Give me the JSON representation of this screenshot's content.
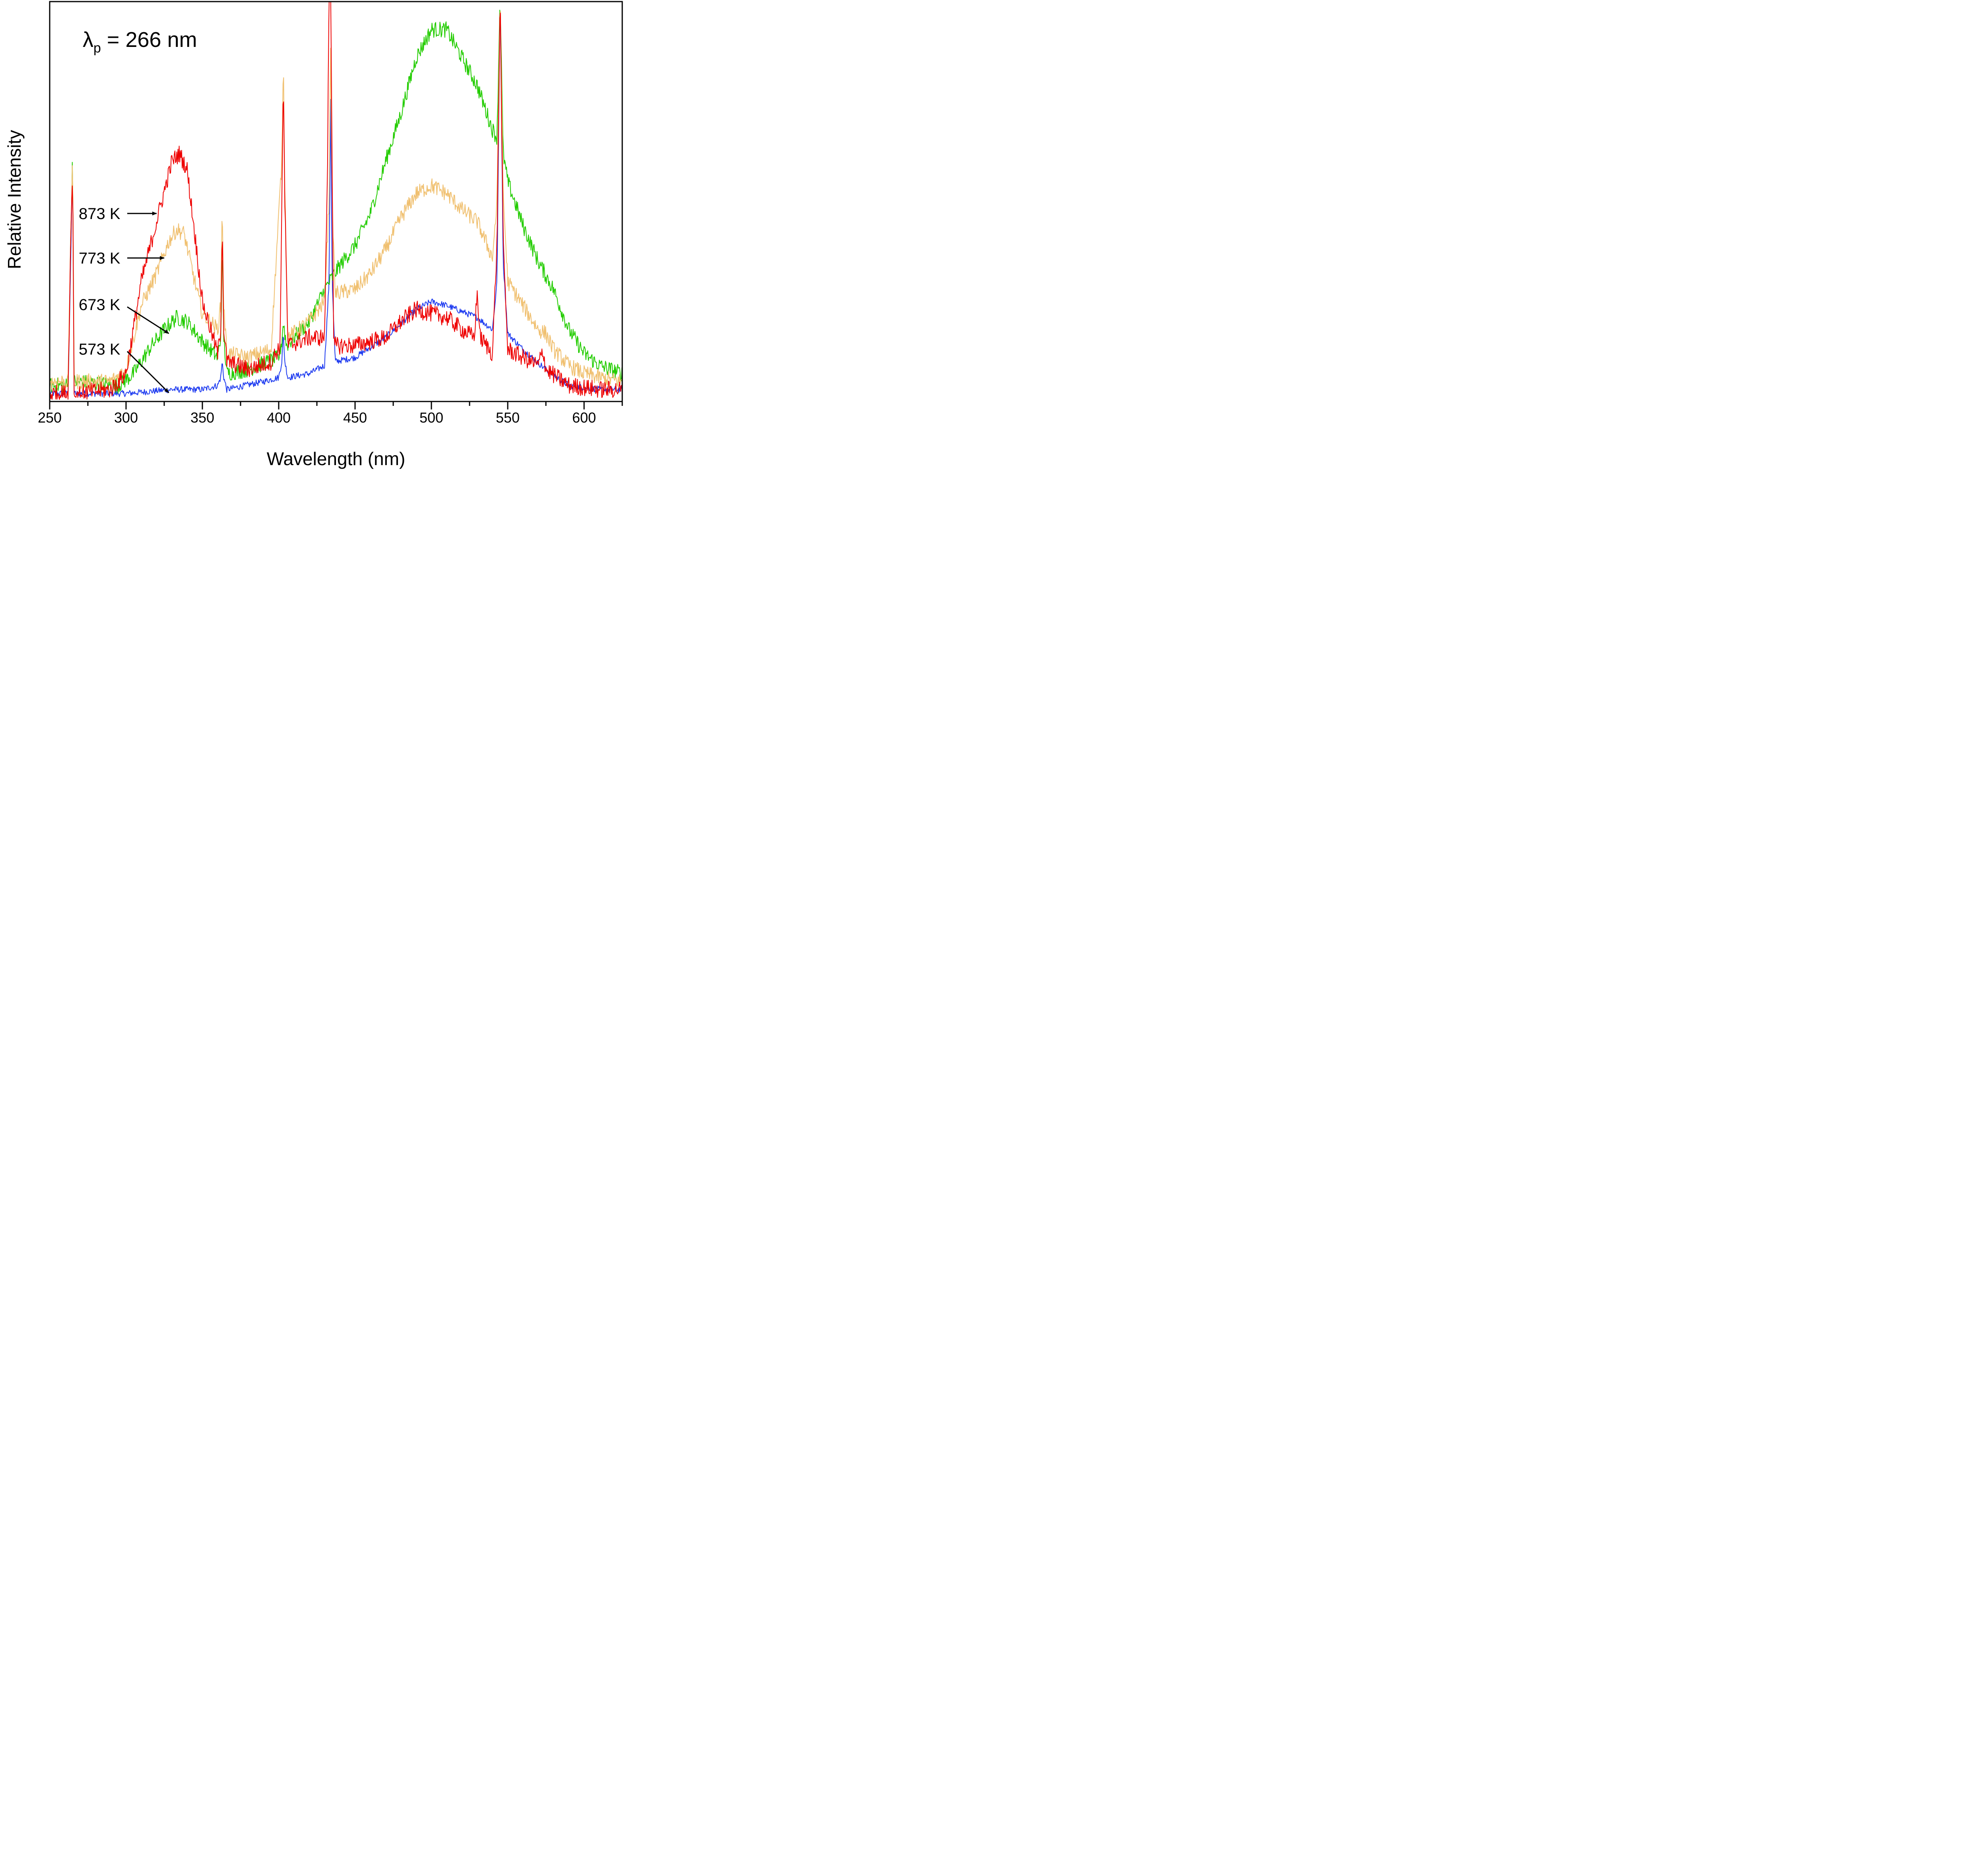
{
  "chart_data": {
    "type": "line",
    "title": "",
    "annotation": {
      "symbol": "λ",
      "subscript": "p",
      "text": " = 266 nm"
    },
    "xlabel": "Wavelength (nm)",
    "ylabel": "Relative Intensity",
    "xlim": [
      250,
      625
    ],
    "ylim": [
      0,
      1
    ],
    "xticks": [
      250,
      300,
      350,
      400,
      450,
      500,
      550,
      600
    ],
    "xtick_labels": [
      "250",
      "300",
      "350",
      "400",
      "450",
      "500",
      "550",
      "600"
    ],
    "yticks_visible": false,
    "grid": false,
    "legend": "none (series labelled by arrows)",
    "series": [
      {
        "name": "573 K",
        "color": "#1f3cf0",
        "noise": 0.008,
        "points": [
          [
            250,
            0.02
          ],
          [
            262,
            0.02
          ],
          [
            264,
            0.4
          ],
          [
            265,
            0.6
          ],
          [
            266,
            0.02
          ],
          [
            300,
            0.02
          ],
          [
            330,
            0.03
          ],
          [
            350,
            0.03
          ],
          [
            360,
            0.04
          ],
          [
            362,
            0.06
          ],
          [
            363,
            0.1
          ],
          [
            364,
            0.06
          ],
          [
            366,
            0.03
          ],
          [
            390,
            0.05
          ],
          [
            400,
            0.06
          ],
          [
            402,
            0.1
          ],
          [
            403,
            0.17
          ],
          [
            404,
            0.1
          ],
          [
            406,
            0.06
          ],
          [
            420,
            0.07
          ],
          [
            430,
            0.09
          ],
          [
            433,
            0.3
          ],
          [
            434,
            0.76
          ],
          [
            435,
            0.3
          ],
          [
            437,
            0.1
          ],
          [
            450,
            0.11
          ],
          [
            470,
            0.16
          ],
          [
            490,
            0.23
          ],
          [
            500,
            0.25
          ],
          [
            510,
            0.24
          ],
          [
            530,
            0.21
          ],
          [
            540,
            0.18
          ],
          [
            543,
            0.3
          ],
          [
            545,
            1.02
          ],
          [
            547,
            0.35
          ],
          [
            550,
            0.17
          ],
          [
            560,
            0.13
          ],
          [
            575,
            0.08
          ],
          [
            590,
            0.04
          ],
          [
            610,
            0.03
          ],
          [
            625,
            0.03
          ]
        ]
      },
      {
        "name": "673 K",
        "color": "#22cc00",
        "noise": 0.02,
        "points": [
          [
            250,
            0.04
          ],
          [
            262,
            0.04
          ],
          [
            264,
            0.45
          ],
          [
            265,
            0.63
          ],
          [
            266,
            0.05
          ],
          [
            295,
            0.04
          ],
          [
            305,
            0.07
          ],
          [
            315,
            0.13
          ],
          [
            325,
            0.18
          ],
          [
            333,
            0.21
          ],
          [
            340,
            0.2
          ],
          [
            350,
            0.15
          ],
          [
            360,
            0.11
          ],
          [
            362,
            0.16
          ],
          [
            363,
            0.38
          ],
          [
            364,
            0.16
          ],
          [
            366,
            0.07
          ],
          [
            380,
            0.08
          ],
          [
            400,
            0.11
          ],
          [
            402,
            0.15
          ],
          [
            403,
            0.2
          ],
          [
            405,
            0.14
          ],
          [
            420,
            0.2
          ],
          [
            430,
            0.28
          ],
          [
            440,
            0.34
          ],
          [
            450,
            0.39
          ],
          [
            460,
            0.47
          ],
          [
            470,
            0.6
          ],
          [
            480,
            0.72
          ],
          [
            490,
            0.86
          ],
          [
            500,
            0.93
          ],
          [
            510,
            0.93
          ],
          [
            520,
            0.86
          ],
          [
            530,
            0.79
          ],
          [
            540,
            0.68
          ],
          [
            543,
            0.66
          ],
          [
            545,
            1.02
          ],
          [
            547,
            0.62
          ],
          [
            550,
            0.55
          ],
          [
            560,
            0.44
          ],
          [
            570,
            0.35
          ],
          [
            580,
            0.28
          ],
          [
            590,
            0.18
          ],
          [
            600,
            0.12
          ],
          [
            610,
            0.09
          ],
          [
            625,
            0.07
          ]
        ]
      },
      {
        "name": "773 K",
        "color": "#f0c070",
        "noise": 0.02,
        "points": [
          [
            250,
            0.05
          ],
          [
            262,
            0.05
          ],
          [
            264,
            0.45
          ],
          [
            265,
            0.6
          ],
          [
            266,
            0.05
          ],
          [
            290,
            0.05
          ],
          [
            300,
            0.08
          ],
          [
            310,
            0.24
          ],
          [
            320,
            0.32
          ],
          [
            328,
            0.4
          ],
          [
            333,
            0.43
          ],
          [
            338,
            0.42
          ],
          [
            345,
            0.3
          ],
          [
            350,
            0.22
          ],
          [
            360,
            0.18
          ],
          [
            362,
            0.24
          ],
          [
            363,
            0.5
          ],
          [
            364,
            0.24
          ],
          [
            366,
            0.12
          ],
          [
            380,
            0.11
          ],
          [
            395,
            0.13
          ],
          [
            402,
            0.6
          ],
          [
            403,
            0.86
          ],
          [
            404,
            0.55
          ],
          [
            406,
            0.16
          ],
          [
            420,
            0.2
          ],
          [
            430,
            0.25
          ],
          [
            433,
            0.5
          ],
          [
            434,
            0.9
          ],
          [
            435,
            0.5
          ],
          [
            437,
            0.27
          ],
          [
            450,
            0.28
          ],
          [
            460,
            0.32
          ],
          [
            470,
            0.38
          ],
          [
            480,
            0.46
          ],
          [
            490,
            0.52
          ],
          [
            500,
            0.54
          ],
          [
            510,
            0.52
          ],
          [
            520,
            0.48
          ],
          [
            530,
            0.45
          ],
          [
            540,
            0.36
          ],
          [
            543,
            0.5
          ],
          [
            545,
            1.02
          ],
          [
            547,
            0.52
          ],
          [
            550,
            0.3
          ],
          [
            560,
            0.24
          ],
          [
            570,
            0.18
          ],
          [
            575,
            0.17
          ],
          [
            580,
            0.13
          ],
          [
            590,
            0.09
          ],
          [
            600,
            0.07
          ],
          [
            610,
            0.06
          ],
          [
            625,
            0.05
          ]
        ]
      },
      {
        "name": "873 K",
        "color": "#ee0000",
        "noise": 0.022,
        "points": [
          [
            250,
            0.02
          ],
          [
            262,
            0.02
          ],
          [
            264,
            0.45
          ],
          [
            265,
            0.58
          ],
          [
            266,
            0.02
          ],
          [
            290,
            0.03
          ],
          [
            300,
            0.07
          ],
          [
            310,
            0.3
          ],
          [
            320,
            0.45
          ],
          [
            330,
            0.6
          ],
          [
            335,
            0.62
          ],
          [
            340,
            0.58
          ],
          [
            345,
            0.42
          ],
          [
            350,
            0.25
          ],
          [
            360,
            0.12
          ],
          [
            362,
            0.18
          ],
          [
            363,
            0.45
          ],
          [
            364,
            0.18
          ],
          [
            366,
            0.1
          ],
          [
            380,
            0.08
          ],
          [
            395,
            0.1
          ],
          [
            401,
            0.14
          ],
          [
            402,
            0.5
          ],
          [
            403,
            0.81
          ],
          [
            404,
            0.5
          ],
          [
            406,
            0.14
          ],
          [
            420,
            0.16
          ],
          [
            430,
            0.16
          ],
          [
            432,
            0.6
          ],
          [
            433,
            1.05
          ],
          [
            434,
            1.05
          ],
          [
            436,
            0.14
          ],
          [
            450,
            0.14
          ],
          [
            470,
            0.16
          ],
          [
            480,
            0.2
          ],
          [
            490,
            0.23
          ],
          [
            500,
            0.22
          ],
          [
            510,
            0.21
          ],
          [
            520,
            0.18
          ],
          [
            528,
            0.16
          ],
          [
            530,
            0.27
          ],
          [
            532,
            0.16
          ],
          [
            540,
            0.12
          ],
          [
            543,
            0.4
          ],
          [
            545,
            1.02
          ],
          [
            547,
            0.4
          ],
          [
            550,
            0.13
          ],
          [
            560,
            0.11
          ],
          [
            570,
            0.09
          ],
          [
            573,
            0.13
          ],
          [
            575,
            0.08
          ],
          [
            590,
            0.04
          ],
          [
            610,
            0.03
          ],
          [
            625,
            0.03
          ]
        ]
      }
    ],
    "arrow_labels": [
      {
        "text": "873 K",
        "target_x": 320,
        "target_y": 0.48
      },
      {
        "text": "773 K",
        "target_x": 325,
        "target_y": 0.35
      },
      {
        "text": "673 K",
        "target_x": 328,
        "target_y": 0.19
      },
      {
        "text": "573 K",
        "target_x": 328,
        "target_y": 0.02
      }
    ]
  }
}
